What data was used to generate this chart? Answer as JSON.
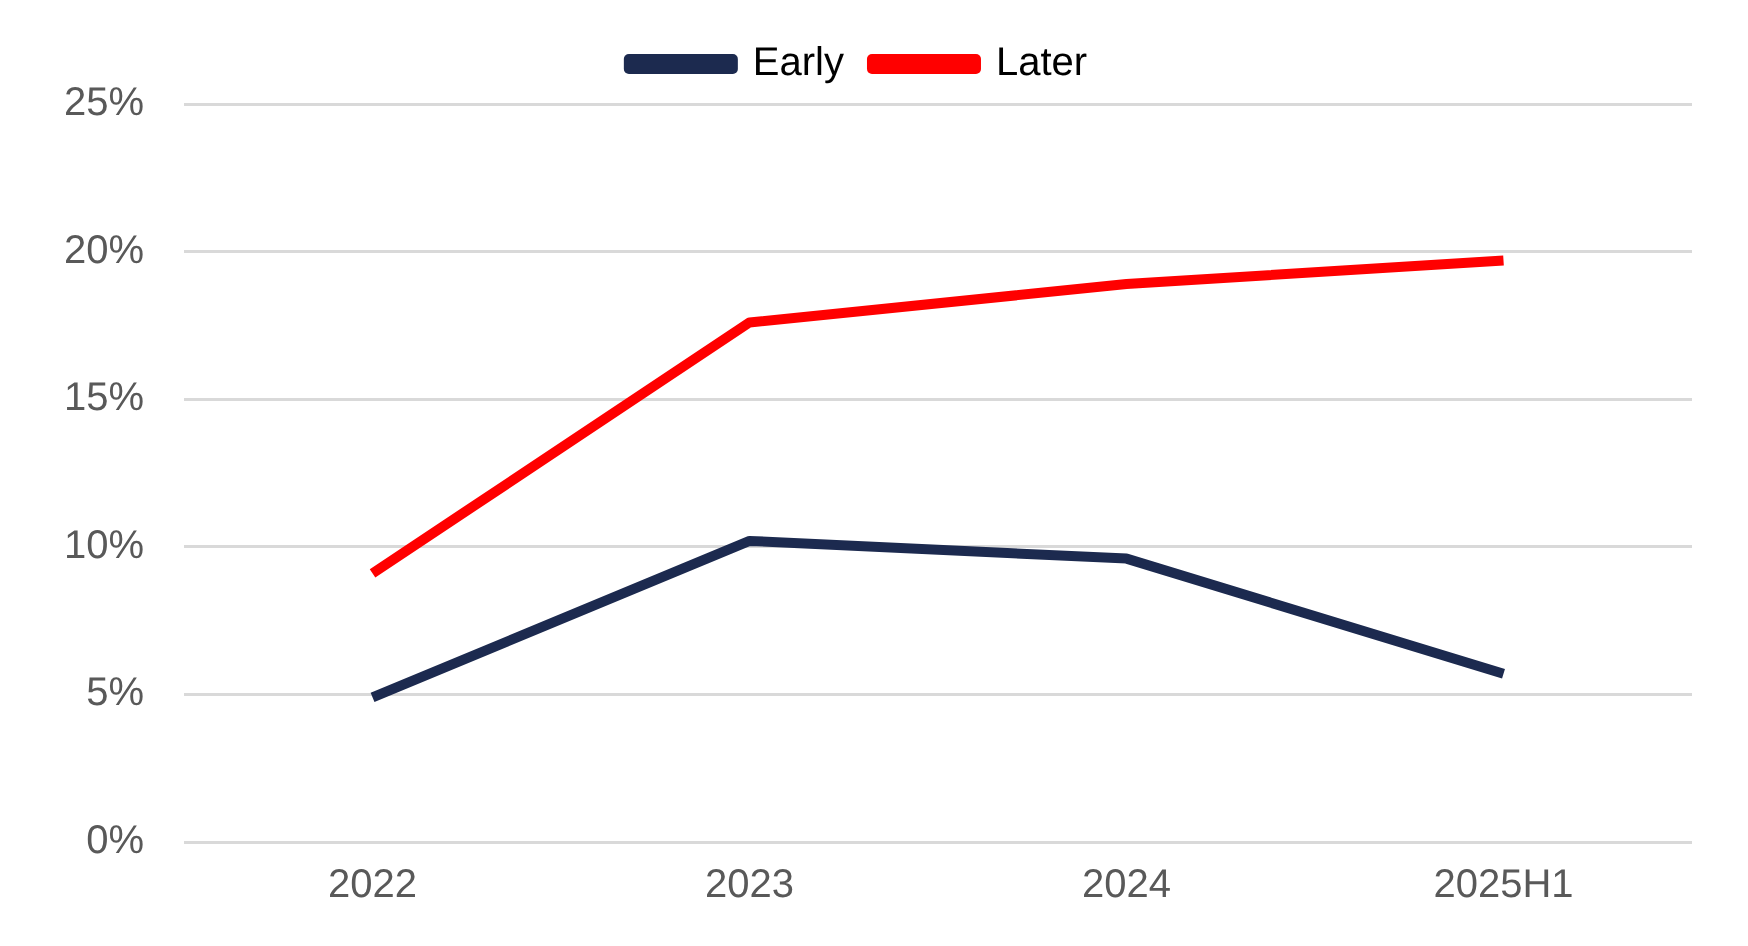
{
  "chart_data": {
    "type": "line",
    "categories": [
      "2022",
      "2023",
      "2024",
      "2025H1"
    ],
    "series": [
      {
        "name": "Early",
        "color": "#1c2a4f",
        "values": [
          4.9,
          10.2,
          9.6,
          5.7
        ]
      },
      {
        "name": "Later",
        "color": "#ff0000",
        "values": [
          9.1,
          17.6,
          18.9,
          19.7
        ]
      }
    ],
    "ylim": [
      0,
      25
    ],
    "yticks": [
      {
        "value": 0,
        "label": "0%"
      },
      {
        "value": 5,
        "label": "5%"
      },
      {
        "value": 10,
        "label": "10%"
      },
      {
        "value": 15,
        "label": "15%"
      },
      {
        "value": 20,
        "label": "20%"
      },
      {
        "value": 25,
        "label": "25%"
      }
    ],
    "grid": "y",
    "legend": "top",
    "marker": "none",
    "line_style": "solid"
  }
}
